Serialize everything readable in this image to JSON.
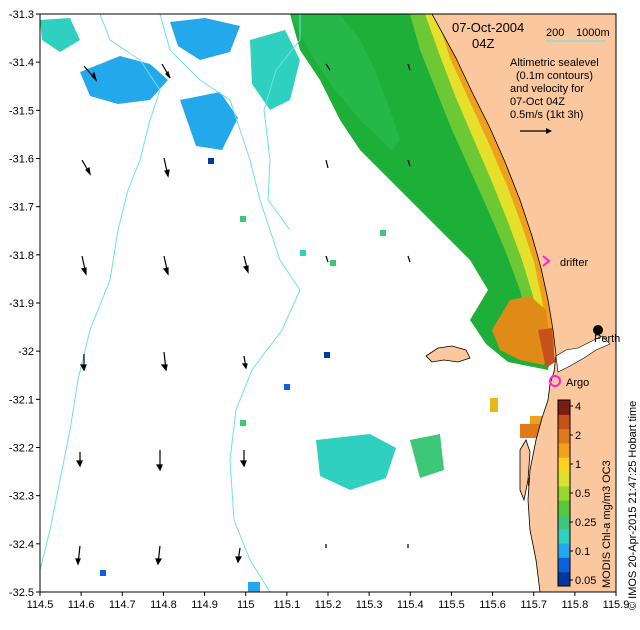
{
  "map": {
    "date_label": "07-Oct-2004",
    "time_label": "04Z",
    "depth_legend": {
      "left": "200",
      "right": "1000m"
    },
    "caption_lines": [
      "Altimetric sealevel",
      "(0.1m contours)",
      "and velocity for",
      "07-Oct 04Z"
    ],
    "velocity_scale": "0.5m/s (1kt 3h)",
    "x_ticks": [
      "114.5",
      "114.6",
      "114.7",
      "114.8",
      "114.9",
      "115",
      "115.1",
      "115.2",
      "115.3",
      "115.4",
      "115.5",
      "115.6",
      "115.7",
      "115.8",
      "115.9"
    ],
    "y_ticks": [
      "-31.3",
      "-31.4",
      "-31.5",
      "-31.6",
      "-31.7",
      "-31.8",
      "-31.9",
      "-32",
      "-32.1",
      "-32.2",
      "-32.3",
      "-32.4",
      "-32.5"
    ],
    "lon_range": [
      114.5,
      115.9
    ],
    "lat_range": [
      -32.5,
      -31.3
    ],
    "places": {
      "drifter": "drifter",
      "perth": "Perth",
      "argo": "Argo"
    },
    "colorbar": {
      "title": "MODIS Chl-a mg/m3 OC3",
      "labels": [
        "4",
        "2",
        "1",
        "0.5",
        "0.25",
        "0.1",
        "0.05"
      ],
      "colors": [
        "#003a9e",
        "#0c60e0",
        "#23a8ec",
        "#2fd0c0",
        "#3cc878",
        "#58c83a",
        "#99d62c",
        "#d8e22c",
        "#ffd21e",
        "#f2a21a",
        "#e07a18",
        "#c8501a",
        "#7a1e10"
      ]
    },
    "credit": "© IMOS 20-Apr-2015 21:47:25 Hobart time",
    "colors": {
      "land": "#fbc79e",
      "contour": "#6fdfe8",
      "chl_green": "#1daf38",
      "drifter": "#ff1fd2"
    }
  }
}
